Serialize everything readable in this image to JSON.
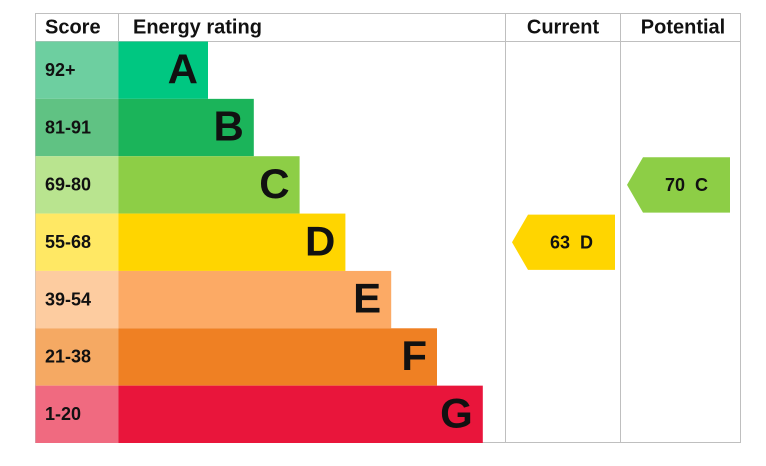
{
  "header": {
    "score": "Score",
    "rating": "Energy rating",
    "current": "Current",
    "potential": "Potential"
  },
  "bands": [
    {
      "score": "92+",
      "letter": "A",
      "color": "#00c781",
      "score_color": "#6dcfa0"
    },
    {
      "score": "81-91",
      "letter": "B",
      "color": "#1bb45a",
      "score_color": "#60c283"
    },
    {
      "score": "69-80",
      "letter": "C",
      "color": "#8dce46",
      "score_color": "#b9e48f"
    },
    {
      "score": "55-68",
      "letter": "D",
      "color": "#ffd500",
      "score_color": "#ffe864"
    },
    {
      "score": "39-54",
      "letter": "E",
      "color": "#fcaa65",
      "score_color": "#fdcca0"
    },
    {
      "score": "21-38",
      "letter": "F",
      "color": "#ef8023",
      "score_color": "#f5a963"
    },
    {
      "score": "1-20",
      "letter": "G",
      "color": "#e9153b",
      "score_color": "#f06a80"
    }
  ],
  "current": {
    "value": "63",
    "letter": "D"
  },
  "potential": {
    "value": "70",
    "letter": "C"
  }
}
